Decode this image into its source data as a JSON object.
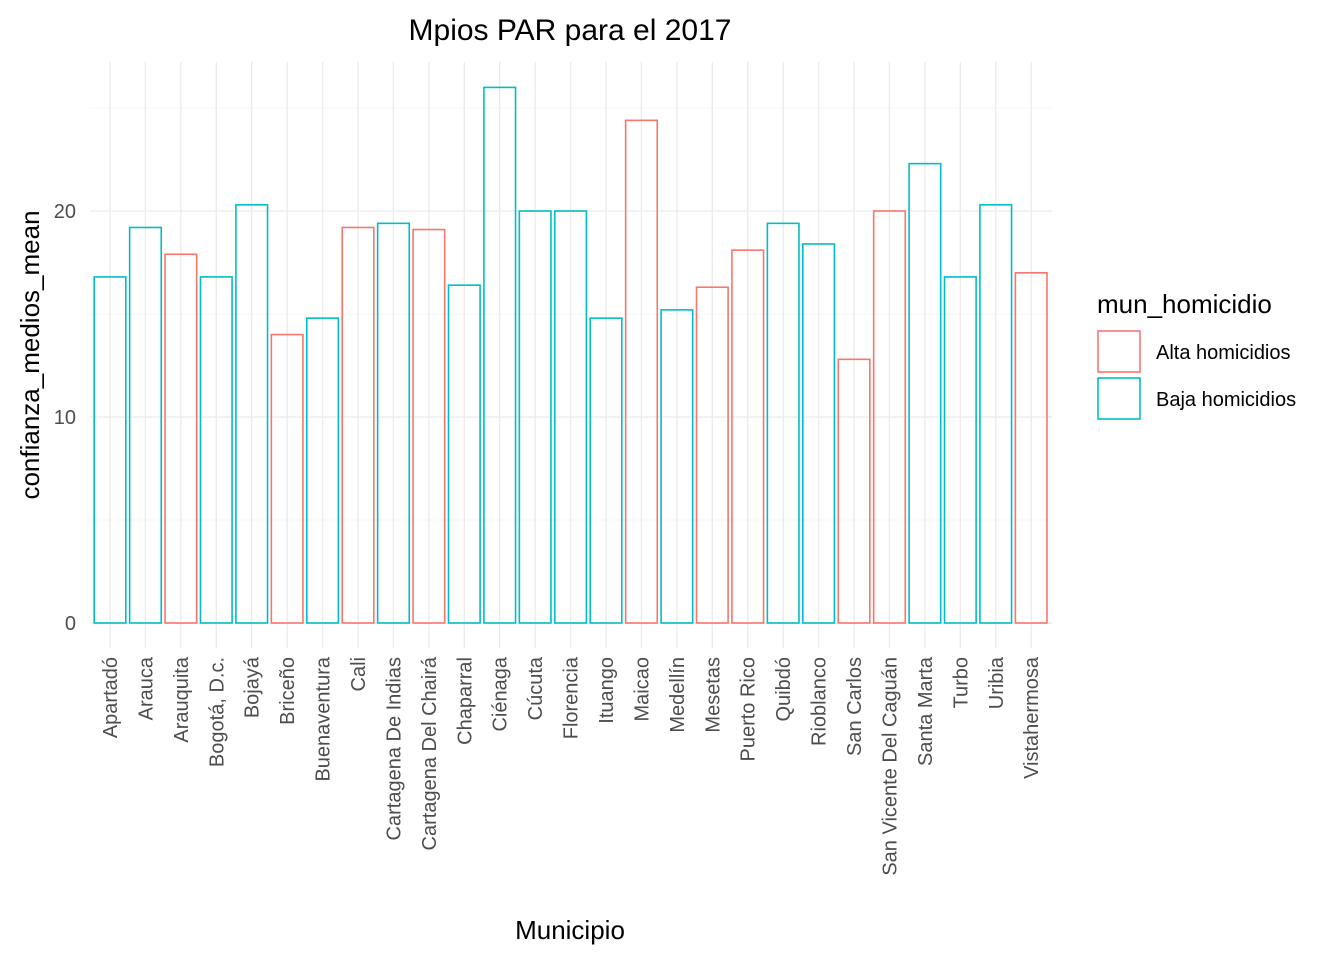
{
  "chart_data": {
    "type": "bar",
    "title": "Mpios PAR para el 2017",
    "xlabel": "Municipio",
    "ylabel": "confianza_medios_mean",
    "ylim": [
      0,
      27
    ],
    "yticks": [
      0,
      10,
      20
    ],
    "grid": true,
    "legend": {
      "title": "mun_homicidio",
      "position": "right",
      "entries": [
        {
          "label": "Alta homicidios",
          "color": "#F8766D"
        },
        {
          "label": "Baja homicidios",
          "color": "#00BFC4"
        }
      ]
    },
    "categories": [
      "Apartadó",
      "Arauca",
      "Arauquita",
      "Bogotá, D.c.",
      "Bojayá",
      "Briceño",
      "Buenaventura",
      "Cali",
      "Cartagena De Indias",
      "Cartagena Del Chairá",
      "Chaparral",
      "Ciénaga",
      "Cúcuta",
      "Florencia",
      "Ituango",
      "Maicao",
      "Medellín",
      "Mesetas",
      "Puerto Rico",
      "Quibdó",
      "Rioblanco",
      "San Carlos",
      "San Vicente Del Caguán",
      "Santa Marta",
      "Turbo",
      "Uribia",
      "Vistahermosa"
    ],
    "values": [
      16.8,
      19.2,
      17.9,
      16.8,
      20.3,
      14.0,
      14.8,
      19.2,
      19.4,
      19.1,
      16.4,
      26.0,
      20.0,
      20.0,
      14.8,
      24.4,
      15.2,
      16.3,
      18.1,
      19.4,
      18.4,
      12.8,
      20.0,
      22.3,
      16.8,
      20.3,
      17.0
    ],
    "group": [
      "Baja homicidios",
      "Baja homicidios",
      "Alta homicidios",
      "Baja homicidios",
      "Baja homicidios",
      "Alta homicidios",
      "Baja homicidios",
      "Alta homicidios",
      "Baja homicidios",
      "Alta homicidios",
      "Baja homicidios",
      "Baja homicidios",
      "Baja homicidios",
      "Baja homicidios",
      "Baja homicidios",
      "Alta homicidios",
      "Baja homicidios",
      "Alta homicidios",
      "Alta homicidios",
      "Baja homicidios",
      "Baja homicidios",
      "Alta homicidios",
      "Alta homicidios",
      "Baja homicidios",
      "Baja homicidios",
      "Baja homicidios",
      "Alta homicidios"
    ]
  }
}
